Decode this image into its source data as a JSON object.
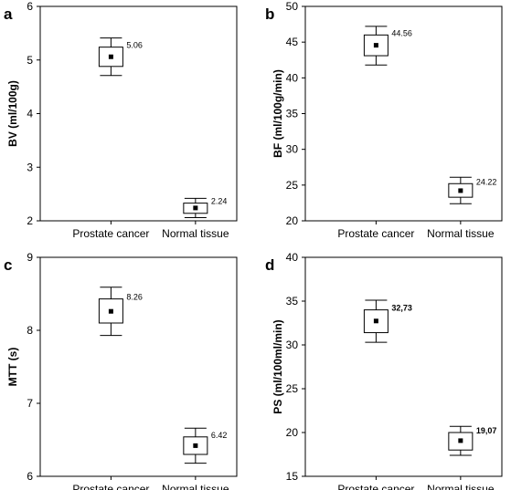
{
  "chart_data": [
    {
      "type": "box",
      "panel_label": "a",
      "ylabel": "BV (ml/100g)",
      "ylim": [
        2,
        6
      ],
      "yticks": [
        "2",
        "3",
        "4",
        "5",
        "6"
      ],
      "categories": [
        "Prostate cancer",
        "Normal tissue"
      ],
      "mean": [
        5.06,
        2.24
      ],
      "box_low": [
        4.88,
        2.14
      ],
      "box_high": [
        5.24,
        2.33
      ],
      "whisker_low": [
        4.71,
        2.06
      ],
      "whisker_high": [
        5.41,
        2.42
      ],
      "value_labels": [
        "5.06",
        "2.24"
      ],
      "label_bold": false
    },
    {
      "type": "box",
      "panel_label": "b",
      "ylabel": "BF (ml/100g/min)",
      "ylim": [
        20,
        50
      ],
      "yticks": [
        "20",
        "25",
        "30",
        "35",
        "40",
        "45",
        "50"
      ],
      "categories": [
        "Prostate cancer",
        "Normal tissue"
      ],
      "mean": [
        44.56,
        24.22
      ],
      "box_low": [
        43.1,
        23.3
      ],
      "box_high": [
        46.0,
        25.2
      ],
      "whisker_low": [
        41.8,
        22.4
      ],
      "whisker_high": [
        47.2,
        26.1
      ],
      "value_labels": [
        "44.56",
        "24.22"
      ],
      "label_bold": false
    },
    {
      "type": "box",
      "panel_label": "c",
      "ylabel": "MTT (s)",
      "ylim": [
        6,
        9
      ],
      "yticks": [
        "6",
        "7",
        "8",
        "9"
      ],
      "categories": [
        "Prostate cancer",
        "Normal tissue"
      ],
      "mean": [
        8.26,
        6.42
      ],
      "box_low": [
        8.1,
        6.3
      ],
      "box_high": [
        8.43,
        6.54
      ],
      "whisker_low": [
        7.93,
        6.18
      ],
      "whisker_high": [
        8.59,
        6.66
      ],
      "value_labels": [
        "8.26",
        "6.42"
      ],
      "label_bold": false
    },
    {
      "type": "box",
      "panel_label": "d",
      "ylabel": "PS (ml/100ml/min)",
      "ylim": [
        15,
        40
      ],
      "yticks": [
        "15",
        "20",
        "25",
        "30",
        "35",
        "40"
      ],
      "categories": [
        "Prostate cancer",
        "Normal tissue"
      ],
      "mean": [
        32.73,
        19.07
      ],
      "box_low": [
        31.4,
        18.0
      ],
      "box_high": [
        34.0,
        20.0
      ],
      "whisker_low": [
        30.3,
        17.4
      ],
      "whisker_high": [
        35.1,
        20.7
      ],
      "value_labels": [
        "32,73",
        "19,07"
      ],
      "label_bold": true
    }
  ]
}
